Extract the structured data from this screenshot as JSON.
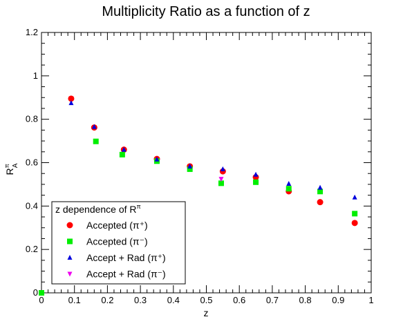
{
  "chart_data": {
    "type": "scatter",
    "title": "Multiplicity Ratio as a function of z",
    "xlabel": "z",
    "ylabel": "R",
    "ylabel_superscript": "π",
    "ylabel_subscript": "A",
    "xlim": [
      0,
      1
    ],
    "ylim": [
      0,
      1.2
    ],
    "x_ticks": [
      "0",
      "0.1",
      "0.2",
      "0.3",
      "0.4",
      "0.5",
      "0.6",
      "0.7",
      "0.8",
      "0.9",
      "1"
    ],
    "y_ticks": [
      "0",
      "0.2",
      "0.4",
      "0.6",
      "0.8",
      "1",
      "1.2"
    ],
    "grid": false,
    "legend": {
      "placement": "bottom-left",
      "header": "z dependence of R",
      "header_superscript": "π"
    },
    "series": [
      {
        "name": "Accepted (π⁺)",
        "marker": "circle",
        "color": "#ff0000",
        "points": [
          [
            0.09,
            0.895
          ],
          [
            0.16,
            0.762
          ],
          [
            0.25,
            0.66
          ],
          [
            0.35,
            0.617
          ],
          [
            0.45,
            0.583
          ],
          [
            0.55,
            0.56
          ],
          [
            0.65,
            0.533
          ],
          [
            0.75,
            0.468
          ],
          [
            0.845,
            0.418
          ],
          [
            0.95,
            0.322
          ]
        ]
      },
      {
        "name": "Accepted (π⁻)",
        "marker": "square",
        "color": "#00ee00",
        "points": [
          [
            0.0,
            0.0
          ],
          [
            0.165,
            0.698
          ],
          [
            0.245,
            0.637
          ],
          [
            0.35,
            0.607
          ],
          [
            0.45,
            0.57
          ],
          [
            0.545,
            0.505
          ],
          [
            0.65,
            0.51
          ],
          [
            0.75,
            0.48
          ],
          [
            0.845,
            0.467
          ],
          [
            0.95,
            0.365
          ]
        ]
      },
      {
        "name": "Accept + Rad (π⁺)",
        "marker": "triangle-up",
        "color": "#0000dd",
        "points": [
          [
            0.09,
            0.875
          ],
          [
            0.16,
            0.765
          ],
          [
            0.25,
            0.66
          ],
          [
            0.35,
            0.615
          ],
          [
            0.45,
            0.583
          ],
          [
            0.55,
            0.57
          ],
          [
            0.65,
            0.545
          ],
          [
            0.75,
            0.503
          ],
          [
            0.845,
            0.485
          ],
          [
            0.95,
            0.44
          ]
        ]
      },
      {
        "name": "Accept + Rad (π⁻)",
        "marker": "triangle-down",
        "color": "#ee00ee",
        "points": [
          [
            0.545,
            0.525
          ]
        ]
      }
    ]
  }
}
